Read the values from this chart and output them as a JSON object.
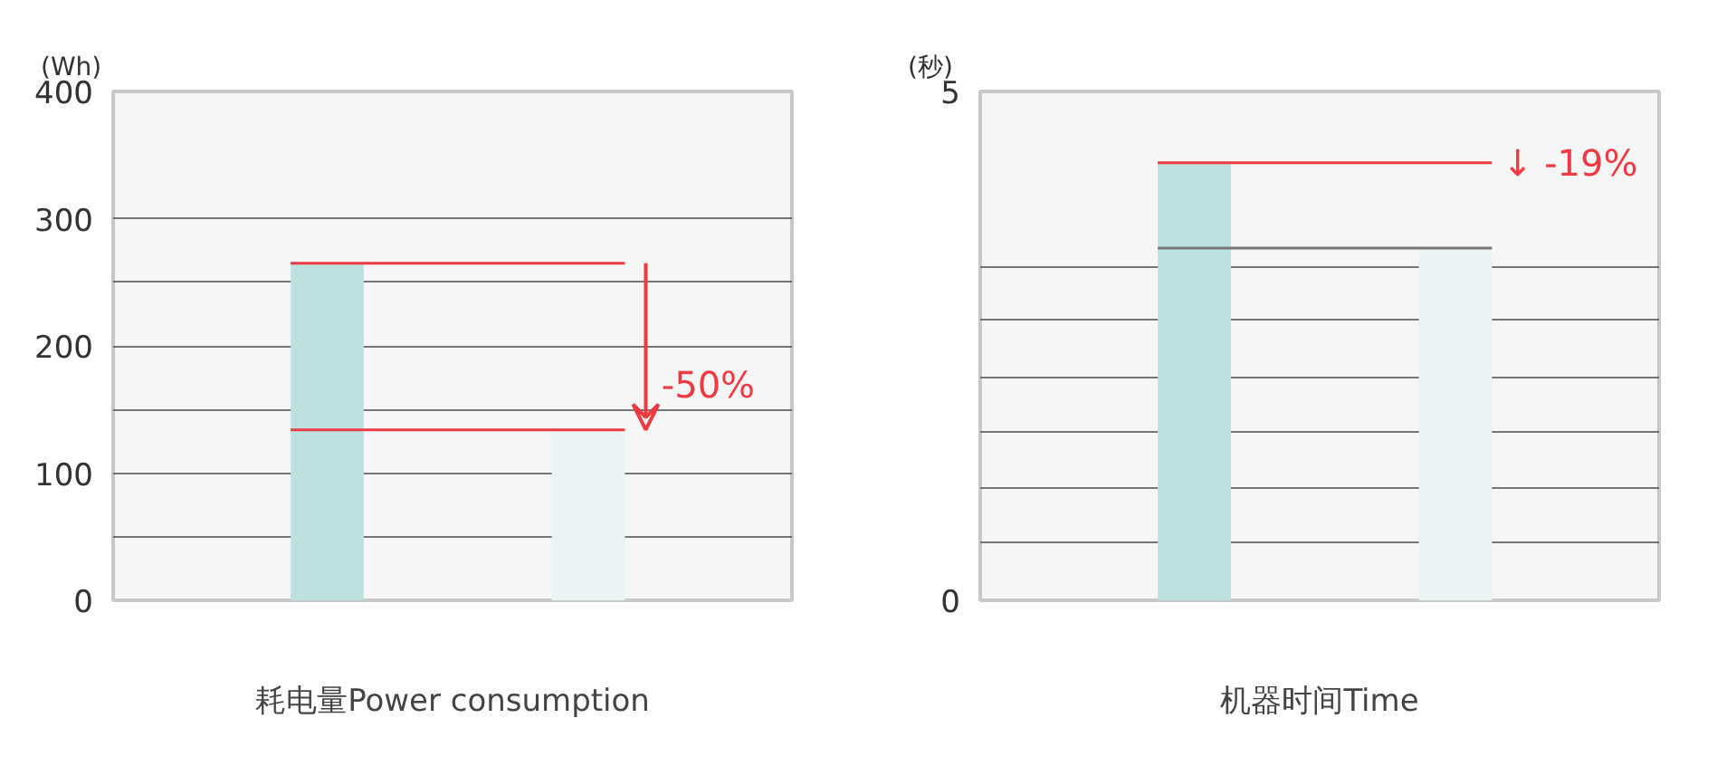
{
  "chart_data": [
    {
      "type": "bar",
      "xlabel": "耗电量Power consumption",
      "ylabel": "(Wh)",
      "categories": [
        null,
        null
      ],
      "colors": [
        "#bde1de",
        "#ebf4f2"
      ],
      "values": [
        265,
        134
      ],
      "ylim": [
        0,
        400
      ],
      "yticks": [
        0,
        {
          "value": 50,
          "label": null
        },
        100,
        {
          "value": 150,
          "label": null
        },
        200,
        {
          "value": 250,
          "label": null
        },
        300,
        400
      ],
      "grid": "y",
      "ref_lines": [
        {
          "axis": "y",
          "value": 265,
          "color": "#ee3a43"
        },
        {
          "axis": "y",
          "value": 134,
          "color": "#ee3a43"
        }
      ],
      "annotations": [
        "-50%"
      ]
    },
    {
      "type": "bar",
      "xlabel": "机器时间Time",
      "ylabel": "(秒)",
      "categories": [
        null,
        null
      ],
      "colors": [
        "#bde1de",
        "#ebf4f2"
      ],
      "values": [
        4.3,
        3.46
      ],
      "ylim": [
        0,
        5
      ],
      "yticks": [
        0,
        {
          "value": 0.57,
          "label": null
        },
        {
          "value": 1.11,
          "label": null
        },
        {
          "value": 1.66,
          "label": null
        },
        {
          "value": 2.18,
          "label": null
        },
        {
          "value": 2.75,
          "label": null
        },
        {
          "value": 3.28,
          "label": null
        },
        5
      ],
      "grid": "y",
      "ref_lines": [
        {
          "axis": "y",
          "value": 4.3,
          "color": "#ee3a43"
        },
        {
          "axis": "y",
          "value": 3.46,
          "color": "#777777"
        }
      ],
      "annotations": [
        "↓ -19%"
      ]
    }
  ]
}
